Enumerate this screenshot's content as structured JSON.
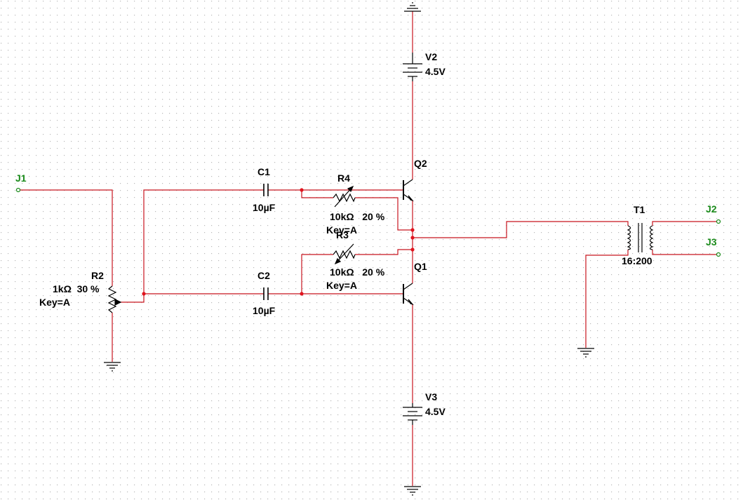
{
  "colors": {
    "wire": "#c8141e",
    "component": "#000000",
    "junction": "#e0141e",
    "connector": "#1a8a1a",
    "label": "#000000",
    "grid_dot": "#b9b9b9",
    "background": "#ffffff"
  },
  "connectors": {
    "j1": "J1",
    "j2": "J2",
    "j3": "J3"
  },
  "components": {
    "v2": {
      "ref": "V2",
      "value": "4.5V"
    },
    "v3": {
      "ref": "V3",
      "value": "4.5V"
    },
    "q1": {
      "ref": "Q1"
    },
    "q2": {
      "ref": "Q2"
    },
    "c1": {
      "ref": "C1",
      "value": "10µF"
    },
    "c2": {
      "ref": "C2",
      "value": "10µF"
    },
    "r2": {
      "ref": "R2",
      "value": "1kΩ  30 %",
      "key": "Key=A"
    },
    "r3": {
      "ref": "R3",
      "value": "10kΩ   20 %",
      "key": "Key=A"
    },
    "r4": {
      "ref": "R4",
      "value": "10kΩ   20 %",
      "key": "Key=A"
    },
    "t1": {
      "ref": "T1",
      "ratio": "16:200"
    }
  },
  "icons": [
    "ground-icon",
    "battery-icon",
    "npn-transistor-icon",
    "pnp-transistor-icon",
    "capacitor-icon",
    "potentiometer-icon",
    "transformer-icon",
    "connector-icon"
  ]
}
